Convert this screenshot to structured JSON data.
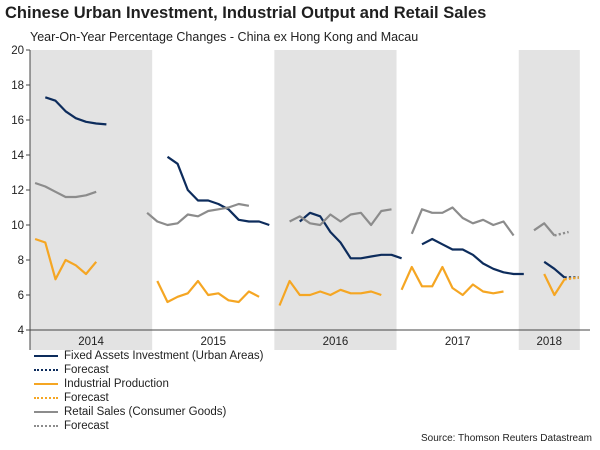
{
  "chart_data": {
    "type": "line",
    "title": "Chinese Urban Investment, Industrial Output and Retail Sales",
    "subtitle": "Year-On-Year Percentage Changes - China ex Hong Kong and Macau",
    "ylim": [
      4,
      20
    ],
    "yticks": [
      4,
      6,
      8,
      10,
      12,
      14,
      16,
      18,
      20
    ],
    "grid": false,
    "year_bands": [
      {
        "label": "2014",
        "start": 0,
        "end": 12,
        "shaded": true
      },
      {
        "label": "2015",
        "start": 12,
        "end": 24,
        "shaded": false
      },
      {
        "label": "2016",
        "start": 24,
        "end": 36,
        "shaded": true
      },
      {
        "label": "2017",
        "start": 36,
        "end": 48,
        "shaded": false
      },
      {
        "label": "2018",
        "start": 48,
        "end": 54,
        "shaded": true
      }
    ],
    "series": [
      {
        "name": "Fixed Assets Investment (Urban Areas)",
        "color": "#0d2c5c",
        "style": "solid",
        "segments": [
          [
            [
              1,
              17.3
            ],
            [
              2,
              17.1
            ],
            [
              3,
              16.5
            ],
            [
              4,
              16.1
            ],
            [
              5,
              15.9
            ],
            [
              6,
              15.8
            ],
            [
              7,
              15.75
            ]
          ],
          [
            [
              13,
              13.9
            ],
            [
              14,
              13.5
            ],
            [
              15,
              12.0
            ],
            [
              16,
              11.4
            ],
            [
              17,
              11.4
            ],
            [
              18,
              11.2
            ],
            [
              19,
              10.9
            ],
            [
              20,
              10.3
            ],
            [
              21,
              10.2
            ],
            [
              22,
              10.2
            ],
            [
              23,
              10.0
            ]
          ],
          [
            [
              26,
              10.2
            ],
            [
              27,
              10.7
            ],
            [
              28,
              10.5
            ],
            [
              29,
              9.6
            ],
            [
              30,
              9.0
            ],
            [
              31,
              8.1
            ],
            [
              32,
              8.1
            ],
            [
              33,
              8.2
            ],
            [
              34,
              8.3
            ],
            [
              35,
              8.3
            ],
            [
              36,
              8.1
            ]
          ],
          [
            [
              38,
              8.9
            ],
            [
              39,
              9.2
            ],
            [
              40,
              8.9
            ],
            [
              41,
              8.6
            ],
            [
              42,
              8.6
            ],
            [
              43,
              8.3
            ],
            [
              44,
              7.8
            ],
            [
              45,
              7.5
            ],
            [
              46,
              7.3
            ],
            [
              47,
              7.2
            ],
            [
              48,
              7.2
            ]
          ],
          [
            [
              50,
              7.9
            ],
            [
              51,
              7.5
            ],
            [
              52,
              7.0
            ]
          ]
        ]
      },
      {
        "name": "Forecast",
        "color": "#0d2c5c",
        "style": "dotted",
        "segments": [
          [
            [
              52,
              7.0
            ],
            [
              53.4,
              7.0
            ]
          ]
        ]
      },
      {
        "name": "Industrial Production",
        "color": "#f5a623",
        "style": "solid",
        "segments": [
          [
            [
              0,
              9.2
            ],
            [
              1,
              9.0
            ],
            [
              2,
              6.9
            ],
            [
              3,
              8.0
            ],
            [
              4,
              7.7
            ],
            [
              5,
              7.2
            ],
            [
              6,
              7.9
            ]
          ],
          [
            [
              12,
              6.8
            ],
            [
              13,
              5.6
            ],
            [
              14,
              5.9
            ],
            [
              15,
              6.1
            ],
            [
              16,
              6.8
            ],
            [
              17,
              6.0
            ],
            [
              18,
              6.1
            ],
            [
              19,
              5.7
            ],
            [
              20,
              5.6
            ],
            [
              21,
              6.2
            ],
            [
              22,
              5.9
            ]
          ],
          [
            [
              24,
              5.4
            ],
            [
              25,
              6.8
            ],
            [
              26,
              6.0
            ],
            [
              27,
              6.0
            ],
            [
              28,
              6.2
            ],
            [
              29,
              6.0
            ],
            [
              30,
              6.3
            ],
            [
              31,
              6.1
            ],
            [
              32,
              6.1
            ],
            [
              33,
              6.2
            ],
            [
              34,
              6.0
            ]
          ],
          [
            [
              36,
              6.3
            ],
            [
              37,
              7.6
            ],
            [
              38,
              6.5
            ],
            [
              39,
              6.5
            ],
            [
              40,
              7.6
            ],
            [
              41,
              6.4
            ],
            [
              42,
              6.0
            ],
            [
              43,
              6.6
            ],
            [
              44,
              6.2
            ],
            [
              45,
              6.1
            ],
            [
              46,
              6.2
            ]
          ],
          [
            [
              50,
              7.2
            ],
            [
              51,
              6.0
            ],
            [
              52,
              6.9
            ]
          ]
        ]
      },
      {
        "name": "Forecast",
        "color": "#f5a623",
        "style": "dotted",
        "segments": [
          [
            [
              52,
              6.9
            ],
            [
              53.4,
              7.0
            ]
          ]
        ]
      },
      {
        "name": "Retail Sales (Consumer Goods)",
        "color": "#8c8c8c",
        "style": "solid",
        "segments": [
          [
            [
              0,
              12.4
            ],
            [
              1,
              12.2
            ],
            [
              2,
              11.9
            ],
            [
              3,
              11.6
            ],
            [
              4,
              11.6
            ],
            [
              5,
              11.7
            ],
            [
              6,
              11.9
            ]
          ],
          [
            [
              11,
              10.7
            ],
            [
              12,
              10.2
            ],
            [
              13,
              10.0
            ],
            [
              14,
              10.1
            ],
            [
              15,
              10.6
            ],
            [
              16,
              10.5
            ],
            [
              17,
              10.8
            ],
            [
              18,
              10.9
            ],
            [
              19,
              11.0
            ],
            [
              20,
              11.2
            ],
            [
              21,
              11.1
            ]
          ],
          [
            [
              25,
              10.2
            ],
            [
              26,
              10.5
            ],
            [
              27,
              10.1
            ],
            [
              28,
              10.0
            ],
            [
              29,
              10.6
            ],
            [
              30,
              10.2
            ],
            [
              31,
              10.6
            ],
            [
              32,
              10.7
            ],
            [
              33,
              10.0
            ],
            [
              34,
              10.8
            ],
            [
              35,
              10.9
            ]
          ],
          [
            [
              37,
              9.5
            ],
            [
              38,
              10.9
            ],
            [
              39,
              10.7
            ],
            [
              40,
              10.7
            ],
            [
              41,
              11.0
            ],
            [
              42,
              10.4
            ],
            [
              43,
              10.1
            ],
            [
              44,
              10.3
            ],
            [
              45,
              10.0
            ],
            [
              46,
              10.2
            ],
            [
              47,
              9.4
            ]
          ],
          [
            [
              49,
              9.7
            ],
            [
              50,
              10.1
            ],
            [
              51,
              9.4
            ]
          ]
        ]
      },
      {
        "name": "Forecast",
        "color": "#8c8c8c",
        "style": "dotted",
        "segments": [
          [
            [
              51,
              9.4
            ],
            [
              52.4,
              9.6
            ]
          ]
        ]
      }
    ],
    "source": "Source: Thomson Reuters Datastream"
  }
}
